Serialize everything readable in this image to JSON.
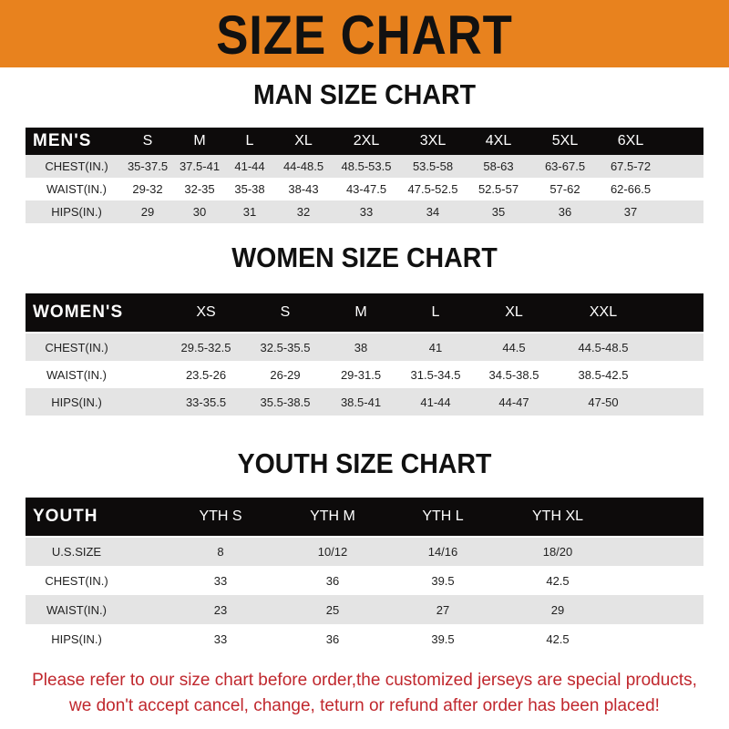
{
  "title": "SIZE CHART",
  "accent": "#E8821E",
  "sections": [
    {
      "title": "MAN SIZE CHART",
      "header": [
        "MEN'S",
        "S",
        "M",
        "L",
        "XL",
        "2XL",
        "3XL",
        "4XL",
        "5XL",
        "6XL"
      ],
      "rows": [
        [
          "CHEST(IN.)",
          "35-37.5",
          "37.5-41",
          "41-44",
          "44-48.5",
          "48.5-53.5",
          "53.5-58",
          "58-63",
          "63-67.5",
          "67.5-72"
        ],
        [
          "WAIST(IN.)",
          "29-32",
          "32-35",
          "35-38",
          "38-43",
          "43-47.5",
          "47.5-52.5",
          "52.5-57",
          "57-62",
          "62-66.5"
        ],
        [
          "HIPS(IN.)",
          "29",
          "30",
          "31",
          "32",
          "33",
          "34",
          "35",
          "36",
          "37"
        ]
      ]
    },
    {
      "title": "WOMEN SIZE CHART",
      "header": [
        "WOMEN'S",
        "XS",
        "S",
        "M",
        "L",
        "XL",
        "XXL"
      ],
      "rows": [
        [
          "CHEST(IN.)",
          "29.5-32.5",
          "32.5-35.5",
          "38",
          "41",
          "44.5",
          "44.5-48.5"
        ],
        [
          "WAIST(IN.)",
          "23.5-26",
          "26-29",
          "29-31.5",
          "31.5-34.5",
          "34.5-38.5",
          "38.5-42.5"
        ],
        [
          "HIPS(IN.)",
          "33-35.5",
          "35.5-38.5",
          "38.5-41",
          "41-44",
          "44-47",
          "47-50"
        ]
      ]
    },
    {
      "title": "YOUTH SIZE CHART",
      "header": [
        "YOUTH",
        "YTH S",
        "YTH M",
        "YTH L",
        "YTH XL"
      ],
      "rows": [
        [
          "U.S.SIZE",
          "8",
          "10/12",
          "14/16",
          "18/20"
        ],
        [
          "CHEST(IN.)",
          "33",
          "36",
          "39.5",
          "42.5"
        ],
        [
          "WAIST(IN.)",
          "23",
          "25",
          "27",
          "29"
        ],
        [
          "HIPS(IN.)",
          "33",
          "36",
          "39.5",
          "42.5"
        ]
      ]
    }
  ],
  "footer": [
    "Please refer to our size chart before order,the customized jerseys are special products,",
    "we don't accept cancel, change, teturn or refund after order has been placed!"
  ]
}
